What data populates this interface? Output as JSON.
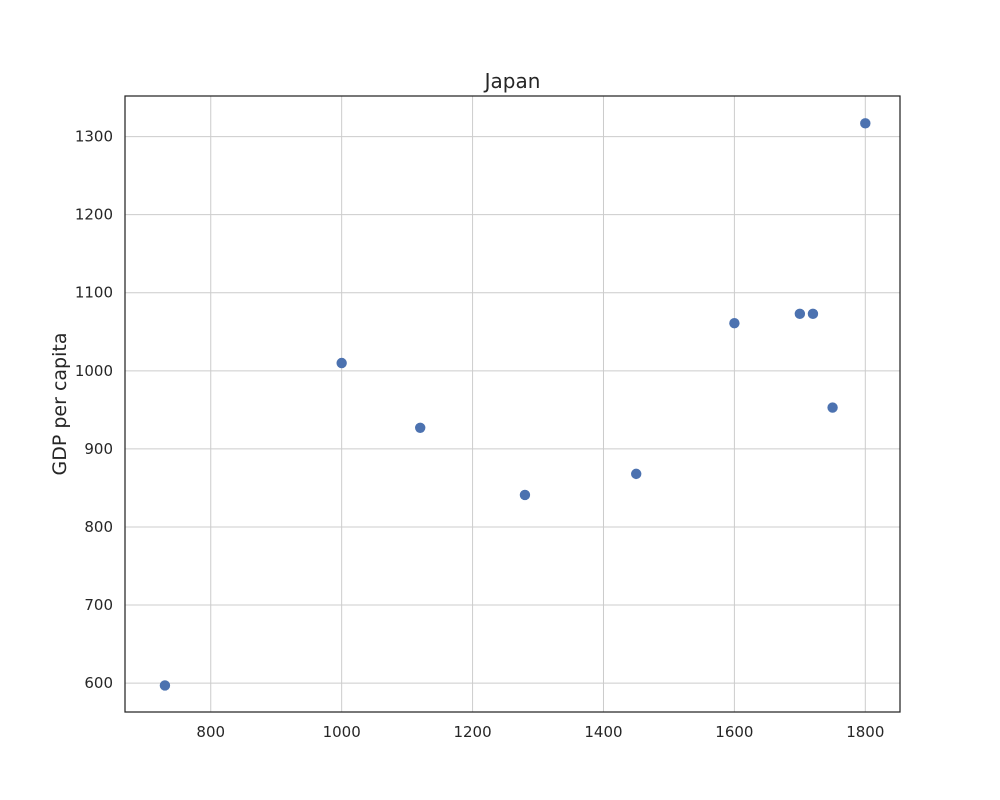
{
  "chart_data": {
    "type": "scatter",
    "title": "Japan",
    "xlabel": "",
    "ylabel": "GDP per capita",
    "xlim": [
      669,
      1853
    ],
    "ylim": [
      563,
      1352
    ],
    "xticks": [
      800,
      1000,
      1200,
      1400,
      1600,
      1800
    ],
    "yticks": [
      600,
      700,
      800,
      900,
      1000,
      1100,
      1200,
      1300
    ],
    "grid": true,
    "marker_color": "#4c72b0",
    "series": [
      {
        "points": [
          {
            "x": 730,
            "y": 597
          },
          {
            "x": 1000,
            "y": 1010
          },
          {
            "x": 1120,
            "y": 927
          },
          {
            "x": 1280,
            "y": 841
          },
          {
            "x": 1450,
            "y": 868
          },
          {
            "x": 1600,
            "y": 1061
          },
          {
            "x": 1700,
            "y": 1073
          },
          {
            "x": 1720,
            "y": 1073
          },
          {
            "x": 1750,
            "y": 953
          },
          {
            "x": 1800,
            "y": 1317
          }
        ]
      }
    ]
  }
}
